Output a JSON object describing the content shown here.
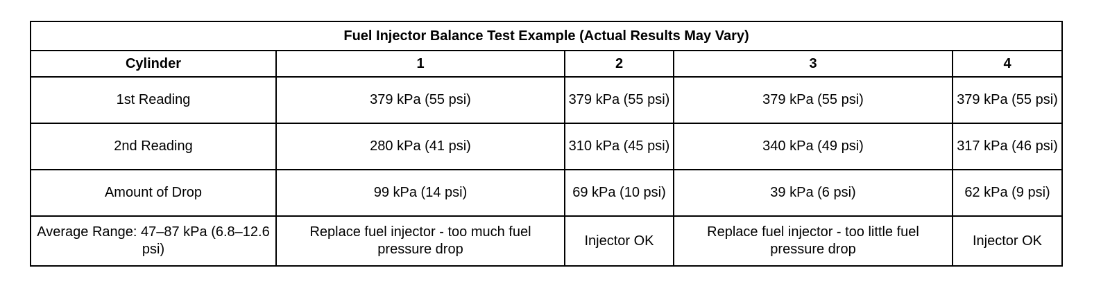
{
  "table": {
    "title": "Fuel Injector Balance Test Example (Actual Results May Vary)",
    "header": [
      "Cylinder",
      "1",
      "2",
      "3",
      "4"
    ],
    "rows": [
      {
        "label": "1st Reading",
        "cells": [
          "379 kPa (55 psi)",
          "379 kPa (55 psi)",
          "379 kPa (55 psi)",
          "379 kPa (55 psi)"
        ]
      },
      {
        "label": "2nd Reading",
        "cells": [
          "280 kPa (41 psi)",
          "310 kPa (45 psi)",
          "340 kPa (49 psi)",
          "317 kPa (46 psi)"
        ]
      },
      {
        "label": "Amount of Drop",
        "cells": [
          "99 kPa (14 psi)",
          "69 kPa (10 psi)",
          "39 kPa (6 psi)",
          "62 kPa (9 psi)"
        ]
      },
      {
        "label": "Average Range: 47–87 kPa (6.8–12.6 psi)",
        "cells": [
          "Replace fuel injector - too much fuel pressure drop",
          "Injector OK",
          "Replace fuel injector - too little fuel pressure drop",
          "Injector OK"
        ]
      }
    ]
  }
}
